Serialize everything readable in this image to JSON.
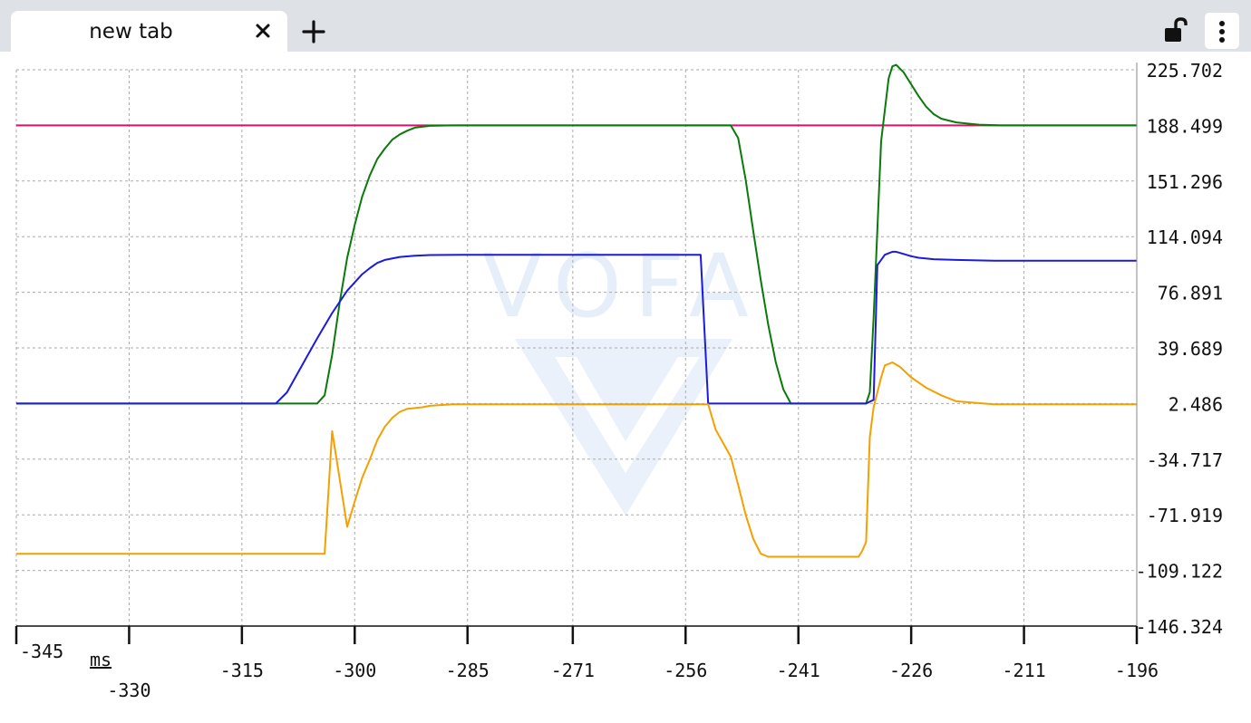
{
  "tab": {
    "title": "new tab"
  },
  "icons": {
    "close": "close-icon",
    "new_tab": "plus-icon",
    "lock": "unlocked-padlock-icon",
    "menu": "vertical-ellipsis-icon"
  },
  "watermark": "VOFA",
  "chart_data": {
    "type": "line",
    "xlabel": "ms",
    "ylabel": "",
    "xlim": [
      -345,
      -196
    ],
    "ylim": [
      -146.324,
      225.702
    ],
    "grid": true,
    "x_ticks": [
      "-345",
      "-330",
      "-315",
      "-300",
      "-285",
      "-271",
      "-256",
      "-241",
      "-226",
      "-211",
      "-196"
    ],
    "x_tick_values": [
      -345,
      -330,
      -315,
      -300,
      -285,
      -271,
      -256,
      -241,
      -226,
      -211,
      -196
    ],
    "y_ticks": [
      "225.702",
      "188.499",
      "151.296",
      "114.094",
      "76.891",
      "39.689",
      "2.486",
      "-34.717",
      "-71.919",
      "-109.122",
      "-146.324"
    ],
    "y_tick_values": [
      225.702,
      188.499,
      151.296,
      114.094,
      76.891,
      39.689,
      2.486,
      -34.717,
      -71.919,
      -109.122,
      -146.324
    ],
    "series": [
      {
        "color": "#e0106a",
        "x": [
          -345,
          -196
        ],
        "y": [
          188.5,
          188.5
        ]
      },
      {
        "color": "#0a7a0a",
        "x": [
          -345,
          -305,
          -304,
          -303,
          -302,
          -301,
          -300,
          -299,
          -298,
          -297,
          -296,
          -295,
          -294,
          -293,
          -292,
          -290,
          -287,
          -280,
          -270,
          -260,
          -250,
          -249,
          -248,
          -247,
          -246,
          -245,
          -244,
          -243,
          -242,
          -240,
          -235,
          -232,
          -231.5,
          -231,
          -230,
          -229,
          -228.5,
          -228,
          -227,
          -226,
          -225,
          -224,
          -223,
          -222,
          -220,
          -217,
          -214,
          -205,
          -196
        ],
        "y": [
          2.5,
          2.5,
          8,
          35,
          70,
          100,
          122,
          141,
          155,
          166,
          173,
          179,
          182.5,
          185,
          187,
          188.2,
          188.5,
          188.5,
          188.5,
          188.5,
          188.5,
          180,
          152,
          118,
          85,
          55,
          30,
          12,
          2.5,
          2.5,
          2.5,
          2.5,
          10,
          60,
          178,
          220,
          228,
          229,
          224,
          216,
          208,
          201,
          196,
          193,
          190.5,
          189,
          188.5,
          188.5,
          188.5
        ]
      },
      {
        "color": "#1a1ae0",
        "x": [
          -345,
          -310.5,
          -309,
          -307,
          -305,
          -303,
          -301,
          -299,
          -298,
          -297,
          -296,
          -294,
          -292,
          -290,
          -285,
          -275,
          -265,
          -254,
          -253,
          -248,
          -240,
          -236,
          -232,
          -231,
          -230.5,
          -229.5,
          -228.5,
          -228,
          -227,
          -226,
          -225,
          -223,
          -220,
          -215,
          -205,
          -196
        ],
        "y": [
          2.5,
          2.5,
          10,
          28,
          46,
          63,
          78,
          89,
          93,
          96.5,
          98.5,
          100.5,
          101.3,
          101.8,
          102,
          102,
          102,
          102,
          2.5,
          2.5,
          2.5,
          2.5,
          2.5,
          5,
          95,
          102,
          104,
          104,
          102.5,
          101,
          100,
          99,
          98.5,
          98,
          98,
          98
        ]
      },
      {
        "color": "#f5a000",
        "x": [
          -345,
          -305,
          -304,
          -303,
          -301,
          -300,
          -299,
          -298,
          -297,
          -296,
          -295,
          -294,
          -293,
          -291,
          -290,
          -287,
          -280,
          -270,
          -260,
          -253,
          -252,
          -250,
          -249,
          -248,
          -247,
          -246,
          -245,
          -244,
          -243,
          -242,
          -240,
          -235,
          -233,
          -232.5,
          -232,
          -231.5,
          -231,
          -230,
          -229.5,
          -228.5,
          -227.5,
          -226,
          -224,
          -222,
          -220,
          -215,
          -205,
          -196
        ],
        "y": [
          -98,
          -98,
          -98,
          -16,
          -80,
          -63,
          -47,
          -35,
          -22,
          -13,
          -7,
          -3,
          -1,
          0,
          1,
          2,
          2,
          2,
          2,
          2,
          -15,
          -33,
          -52,
          -72,
          -88,
          -98,
          -100,
          -100,
          -100,
          -100,
          -100,
          -100,
          -100,
          -96,
          -90,
          -20,
          0,
          20,
          28,
          30,
          27,
          20,
          13,
          8,
          4,
          2,
          2,
          2
        ]
      }
    ]
  }
}
